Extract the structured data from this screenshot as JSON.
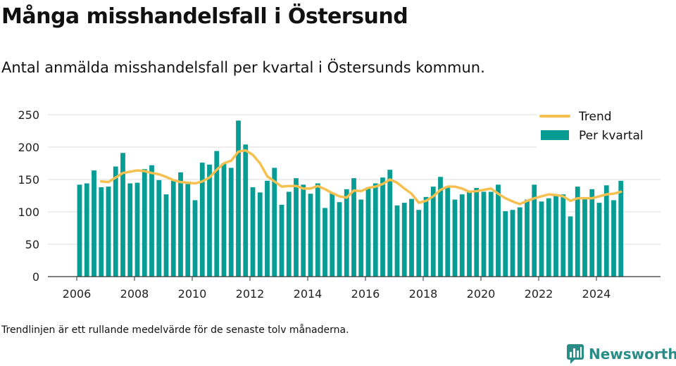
{
  "header": {
    "title": "Många misshandelsfall i Östersund",
    "subtitle": "Antal anmälda misshandelsfall per kvartal i Östersunds kommun."
  },
  "footer": {
    "note": "Trendlinjen är ett rullande medelvärde för de senaste tolv månaderna.",
    "brand": "Newsworthy"
  },
  "colors": {
    "bar": "#089d94",
    "trend": "#f5c04f",
    "grid": "#dddddd",
    "brand": "#2a8c87"
  },
  "chart_data": {
    "type": "bar",
    "x_unit": "quarter",
    "x_start": "2006-Q1",
    "ylim": [
      0,
      250
    ],
    "yticks": [
      0,
      50,
      100,
      150,
      200,
      250
    ],
    "xticks": [
      "2006",
      "2008",
      "2010",
      "2012",
      "2014",
      "2016",
      "2018",
      "2020",
      "2022",
      "2024"
    ],
    "legend_position": "top-right",
    "grid": true,
    "series": [
      {
        "name": "Per kvartal",
        "type": "bar",
        "values": [
          142,
          144,
          164,
          138,
          139,
          170,
          191,
          144,
          145,
          166,
          172,
          149,
          127,
          148,
          161,
          143,
          118,
          176,
          173,
          194,
          175,
          168,
          241,
          204,
          138,
          130,
          148,
          168,
          111,
          131,
          152,
          142,
          128,
          144,
          106,
          129,
          115,
          135,
          152,
          119,
          138,
          144,
          153,
          165,
          110,
          114,
          120,
          103,
          123,
          139,
          154,
          138,
          119,
          127,
          131,
          137,
          131,
          131,
          142,
          101,
          103,
          107,
          119,
          142,
          116,
          121,
          126,
          127,
          93,
          139,
          122,
          135,
          114,
          141,
          118,
          148
        ]
      },
      {
        "name": "Trend",
        "type": "line",
        "values": [
          null,
          null,
          null,
          147,
          146,
          153,
          160,
          162,
          164,
          163,
          160,
          158,
          154,
          149,
          146,
          145,
          144,
          147,
          153,
          165,
          175,
          179,
          193,
          195,
          188,
          175,
          155,
          147,
          139,
          140,
          140,
          136,
          136,
          140,
          135,
          129,
          124,
          122,
          133,
          132,
          137,
          139,
          143,
          150,
          145,
          136,
          128,
          114,
          117,
          124,
          134,
          139,
          139,
          136,
          131,
          132,
          134,
          136,
          128,
          121,
          116,
          112,
          117,
          121,
          124,
          127,
          126,
          124,
          117,
          121,
          121,
          121,
          124,
          127,
          128,
          131
        ]
      }
    ]
  }
}
